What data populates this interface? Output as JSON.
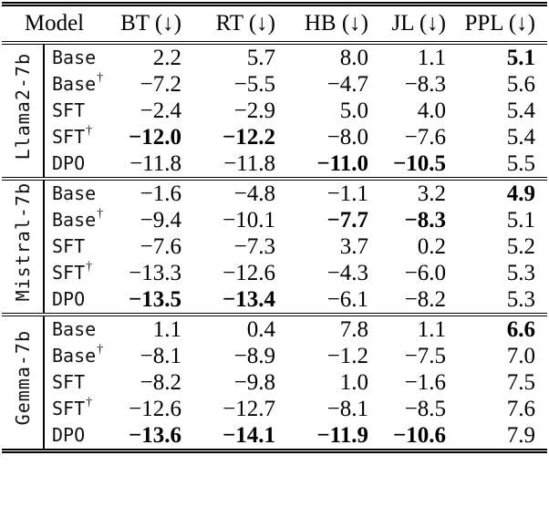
{
  "colors": {
    "background": "#ffffff",
    "text": "#000000",
    "rule": "#000000"
  },
  "table": {
    "dagger_symbol": "†",
    "header": {
      "model": "Model",
      "metrics": [
        "BT (↓)",
        "RT (↓)",
        "HB (↓)",
        "JL (↓)",
        "PPL (↓)"
      ]
    },
    "groups": [
      {
        "name": "Llama2-7b",
        "rows": [
          {
            "model": "Base",
            "dagger": false,
            "values": [
              "2.2",
              "5.7",
              "8.0",
              "1.1",
              "5.1"
            ],
            "bold": [
              0,
              0,
              0,
              0,
              1
            ]
          },
          {
            "model": "Base",
            "dagger": true,
            "values": [
              "−7.2",
              "−5.5",
              "−4.7",
              "−8.3",
              "5.6"
            ],
            "bold": [
              0,
              0,
              0,
              0,
              0
            ]
          },
          {
            "model": "SFT",
            "dagger": false,
            "values": [
              "−2.4",
              "−2.9",
              "5.0",
              "4.0",
              "5.4"
            ],
            "bold": [
              0,
              0,
              0,
              0,
              0
            ]
          },
          {
            "model": "SFT",
            "dagger": true,
            "values": [
              "−12.0",
              "−12.2",
              "−8.0",
              "−7.6",
              "5.4"
            ],
            "bold": [
              1,
              1,
              0,
              0,
              0
            ]
          },
          {
            "model": "DPO",
            "dagger": false,
            "values": [
              "−11.8",
              "−11.8",
              "−11.0",
              "−10.5",
              "5.5"
            ],
            "bold": [
              0,
              0,
              1,
              1,
              0
            ]
          }
        ]
      },
      {
        "name": "Mistral-7b",
        "rows": [
          {
            "model": "Base",
            "dagger": false,
            "values": [
              "−1.6",
              "−4.8",
              "−1.1",
              "3.2",
              "4.9"
            ],
            "bold": [
              0,
              0,
              0,
              0,
              1
            ]
          },
          {
            "model": "Base",
            "dagger": true,
            "values": [
              "−9.4",
              "−10.1",
              "−7.7",
              "−8.3",
              "5.1"
            ],
            "bold": [
              0,
              0,
              1,
              1,
              0
            ]
          },
          {
            "model": "SFT",
            "dagger": false,
            "values": [
              "−7.6",
              "−7.3",
              "3.7",
              "0.2",
              "5.2"
            ],
            "bold": [
              0,
              0,
              0,
              0,
              0
            ]
          },
          {
            "model": "SFT",
            "dagger": true,
            "values": [
              "−13.3",
              "−12.6",
              "−4.3",
              "−6.0",
              "5.3"
            ],
            "bold": [
              0,
              0,
              0,
              0,
              0
            ]
          },
          {
            "model": "DPO",
            "dagger": false,
            "values": [
              "−13.5",
              "−13.4",
              "−6.1",
              "−8.2",
              "5.3"
            ],
            "bold": [
              1,
              1,
              0,
              0,
              0
            ]
          }
        ]
      },
      {
        "name": "Gemma-7b",
        "rows": [
          {
            "model": "Base",
            "dagger": false,
            "values": [
              "1.1",
              "0.4",
              "7.8",
              "1.1",
              "6.6"
            ],
            "bold": [
              0,
              0,
              0,
              0,
              1
            ]
          },
          {
            "model": "Base",
            "dagger": true,
            "values": [
              "−8.1",
              "−8.9",
              "−1.2",
              "−7.5",
              "7.0"
            ],
            "bold": [
              0,
              0,
              0,
              0,
              0
            ]
          },
          {
            "model": "SFT",
            "dagger": false,
            "values": [
              "−8.2",
              "−9.8",
              "1.0",
              "−1.6",
              "7.5"
            ],
            "bold": [
              0,
              0,
              0,
              0,
              0
            ]
          },
          {
            "model": "SFT",
            "dagger": true,
            "values": [
              "−12.6",
              "−12.7",
              "−8.1",
              "−8.5",
              "7.6"
            ],
            "bold": [
              0,
              0,
              0,
              0,
              0
            ]
          },
          {
            "model": "DPO",
            "dagger": false,
            "values": [
              "−13.6",
              "−14.1",
              "−11.9",
              "−10.6",
              "7.9"
            ],
            "bold": [
              1,
              1,
              1,
              1,
              0
            ]
          }
        ]
      }
    ]
  }
}
